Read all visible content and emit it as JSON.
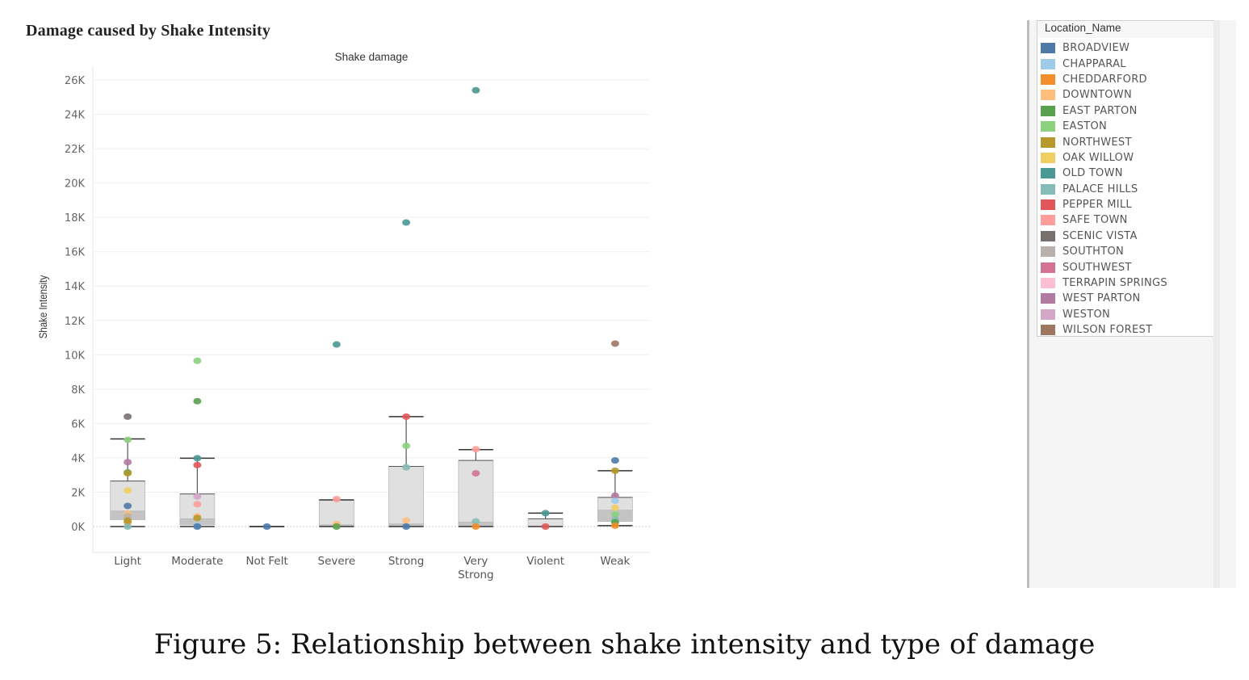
{
  "header": {
    "title": "Damage caused by Shake Intensity"
  },
  "caption": "Figure 5: Relationship between shake intensity and type of damage",
  "legend": {
    "title": "Location_Name",
    "items": [
      {
        "label": "BROADVIEW",
        "color": "#4e79a7"
      },
      {
        "label": "CHAPPARAL",
        "color": "#a0cbe8"
      },
      {
        "label": "CHEDDARFORD",
        "color": "#f28e2b"
      },
      {
        "label": "DOWNTOWN",
        "color": "#ffbe7d"
      },
      {
        "label": "EAST PARTON",
        "color": "#59a14f"
      },
      {
        "label": "EASTON",
        "color": "#8cd17d"
      },
      {
        "label": "NORTHWEST",
        "color": "#b6992d"
      },
      {
        "label": "OAK WILLOW",
        "color": "#f1ce63"
      },
      {
        "label": "OLD TOWN",
        "color": "#499894"
      },
      {
        "label": "PALACE HILLS",
        "color": "#86bcb6"
      },
      {
        "label": "PEPPER MILL",
        "color": "#e15759"
      },
      {
        "label": "SAFE TOWN",
        "color": "#ff9d9a"
      },
      {
        "label": "SCENIC VISTA",
        "color": "#79706e"
      },
      {
        "label": "SOUTHTON",
        "color": "#bab0ac"
      },
      {
        "label": "SOUTHWEST",
        "color": "#d37295"
      },
      {
        "label": "TERRAPIN SPRINGS",
        "color": "#fabfd2"
      },
      {
        "label": "WEST PARTON",
        "color": "#b07aa1"
      },
      {
        "label": "WESTON",
        "color": "#d4a6c8"
      },
      {
        "label": "WILSON FOREST",
        "color": "#9d7660"
      }
    ]
  },
  "chart_data": {
    "type": "box-scatter",
    "title": "Shake damage",
    "ylabel": "Shake Intensity",
    "xlabel": "",
    "ylim": [
      -1500,
      27000
    ],
    "yticks": [
      0,
      2000,
      4000,
      6000,
      8000,
      10000,
      12000,
      14000,
      16000,
      18000,
      20000,
      22000,
      24000,
      26000
    ],
    "ytick_labels": [
      "0K",
      "2K",
      "4K",
      "6K",
      "8K",
      "10K",
      "12K",
      "14K",
      "16K",
      "18K",
      "20K",
      "22K",
      "24K",
      "26K"
    ],
    "grid": true,
    "legend_position": "right",
    "categories": [
      {
        "label": [
          "Light"
        ],
        "box": {
          "whisker_low": 0,
          "q1": 400,
          "median": 900,
          "q3": 2650,
          "whisker_high": 5100
        },
        "points": [
          {
            "loc": "SCENIC VISTA",
            "y": 6400
          },
          {
            "loc": "EASTON",
            "y": 5050
          },
          {
            "loc": "WEST PARTON",
            "y": 3750
          },
          {
            "loc": "EAST PARTON",
            "y": 3150
          },
          {
            "loc": "NORTHWEST",
            "y": 3100
          },
          {
            "loc": "OAK WILLOW",
            "y": 2100
          },
          {
            "loc": "BROADVIEW",
            "y": 1200
          },
          {
            "loc": "DOWNTOWN",
            "y": 750
          },
          {
            "loc": "SOUTHTON",
            "y": 600
          },
          {
            "loc": "CHEDDARFORD",
            "y": 250
          },
          {
            "loc": "NORTHWEST",
            "y": 350
          },
          {
            "loc": "PALACE HILLS",
            "y": 0
          }
        ]
      },
      {
        "label": [
          "Moderate"
        ],
        "box": {
          "whisker_low": 0,
          "q1": 100,
          "median": 450,
          "q3": 1900,
          "whisker_high": 3980
        },
        "points": [
          {
            "loc": "EASTON",
            "y": 9650
          },
          {
            "loc": "EAST PARTON",
            "y": 7300
          },
          {
            "loc": "OLD TOWN",
            "y": 3980
          },
          {
            "loc": "PEPPER MILL",
            "y": 3580
          },
          {
            "loc": "WESTON",
            "y": 1750
          },
          {
            "loc": "SAFE TOWN",
            "y": 1300
          },
          {
            "loc": "DOWNTOWN",
            "y": 600
          },
          {
            "loc": "NORTHWEST",
            "y": 500
          },
          {
            "loc": "CHAPPARAL",
            "y": 50
          },
          {
            "loc": "BROADVIEW",
            "y": 0
          }
        ]
      },
      {
        "label": [
          "Not Felt"
        ],
        "box": {
          "whisker_low": 0,
          "q1": 0,
          "median": 0,
          "q3": 0,
          "whisker_high": 0
        },
        "points": [
          {
            "loc": "BROADVIEW",
            "y": 0
          }
        ]
      },
      {
        "label": [
          "Severe"
        ],
        "box": {
          "whisker_low": 0,
          "q1": 0,
          "median": 100,
          "q3": 1550,
          "whisker_high": 1550
        },
        "points": [
          {
            "loc": "OLD TOWN",
            "y": 10600
          },
          {
            "loc": "SAFE TOWN",
            "y": 1600
          },
          {
            "loc": "DOWNTOWN",
            "y": 150
          },
          {
            "loc": "EAST PARTON",
            "y": 0
          }
        ]
      },
      {
        "label": [
          "Strong"
        ],
        "box": {
          "whisker_low": 0,
          "q1": 0,
          "median": 150,
          "q3": 3500,
          "whisker_high": 6400
        },
        "points": [
          {
            "loc": "OLD TOWN",
            "y": 17700
          },
          {
            "loc": "PEPPER MILL",
            "y": 6400
          },
          {
            "loc": "EASTON",
            "y": 4700
          },
          {
            "loc": "PALACE HILLS",
            "y": 3450
          },
          {
            "loc": "DOWNTOWN",
            "y": 350
          },
          {
            "loc": "BROADVIEW",
            "y": 0
          }
        ]
      },
      {
        "label": [
          "Very",
          "Strong"
        ],
        "box": {
          "whisker_low": 0,
          "q1": 0,
          "median": 250,
          "q3": 3850,
          "whisker_high": 4480
        },
        "points": [
          {
            "loc": "OLD TOWN",
            "y": 25400
          },
          {
            "loc": "SAFE TOWN",
            "y": 4500
          },
          {
            "loc": "SOUTHWEST",
            "y": 3100
          },
          {
            "loc": "PALACE HILLS",
            "y": 300
          },
          {
            "loc": "CHEDDARFORD",
            "y": 0
          }
        ]
      },
      {
        "label": [
          "Violent"
        ],
        "box": {
          "whisker_low": 0,
          "q1": 0,
          "median": 0,
          "q3": 450,
          "whisker_high": 780
        },
        "points": [
          {
            "loc": "OLD TOWN",
            "y": 780
          },
          {
            "loc": "PEPPER MILL",
            "y": 0
          }
        ]
      },
      {
        "label": [
          "Weak"
        ],
        "box": {
          "whisker_low": 50,
          "q1": 300,
          "median": 950,
          "q3": 1700,
          "whisker_high": 3250
        },
        "points": [
          {
            "loc": "WILSON FOREST",
            "y": 10650
          },
          {
            "loc": "BROADVIEW",
            "y": 3850
          },
          {
            "loc": "NORTHWEST",
            "y": 3250
          },
          {
            "loc": "WEST PARTON",
            "y": 1800
          },
          {
            "loc": "CHAPPARAL",
            "y": 1500
          },
          {
            "loc": "OAK WILLOW",
            "y": 1100
          },
          {
            "loc": "EASTON",
            "y": 700
          },
          {
            "loc": "PALACE HILLS",
            "y": 400
          },
          {
            "loc": "EAST PARTON",
            "y": 250
          },
          {
            "loc": "CHEDDARFORD",
            "y": 50
          }
        ]
      }
    ]
  }
}
